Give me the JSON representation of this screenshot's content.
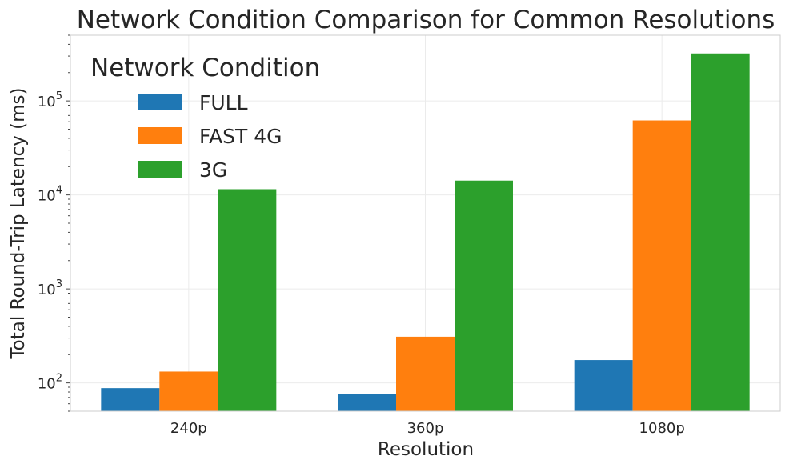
{
  "chart_data": {
    "type": "bar",
    "title": "Network Condition Comparison for Common Resolutions",
    "xlabel": "Resolution",
    "ylabel": "Total Round-Trip Latency (ms)",
    "yscale": "log",
    "ylim": [
      50,
      500000
    ],
    "yticks": [
      {
        "value": 100,
        "base": "10",
        "exp": "2"
      },
      {
        "value": 1000,
        "base": "10",
        "exp": "3"
      },
      {
        "value": 10000,
        "base": "10",
        "exp": "4"
      },
      {
        "value": 100000,
        "base": "10",
        "exp": "5"
      }
    ],
    "grid": true,
    "categories": [
      "240p",
      "360p",
      "1080p"
    ],
    "legend": {
      "title": "Network Condition",
      "placement": "upper-left"
    },
    "series": [
      {
        "name": "FULL",
        "color": "#1f77b4",
        "values": [
          88,
          76,
          175
        ]
      },
      {
        "name": "FAST 4G",
        "color": "#ff7f0e",
        "values": [
          132,
          310,
          62000
        ]
      },
      {
        "name": "3G",
        "color": "#2ca02c",
        "values": [
          11500,
          14200,
          320000
        ]
      }
    ]
  }
}
